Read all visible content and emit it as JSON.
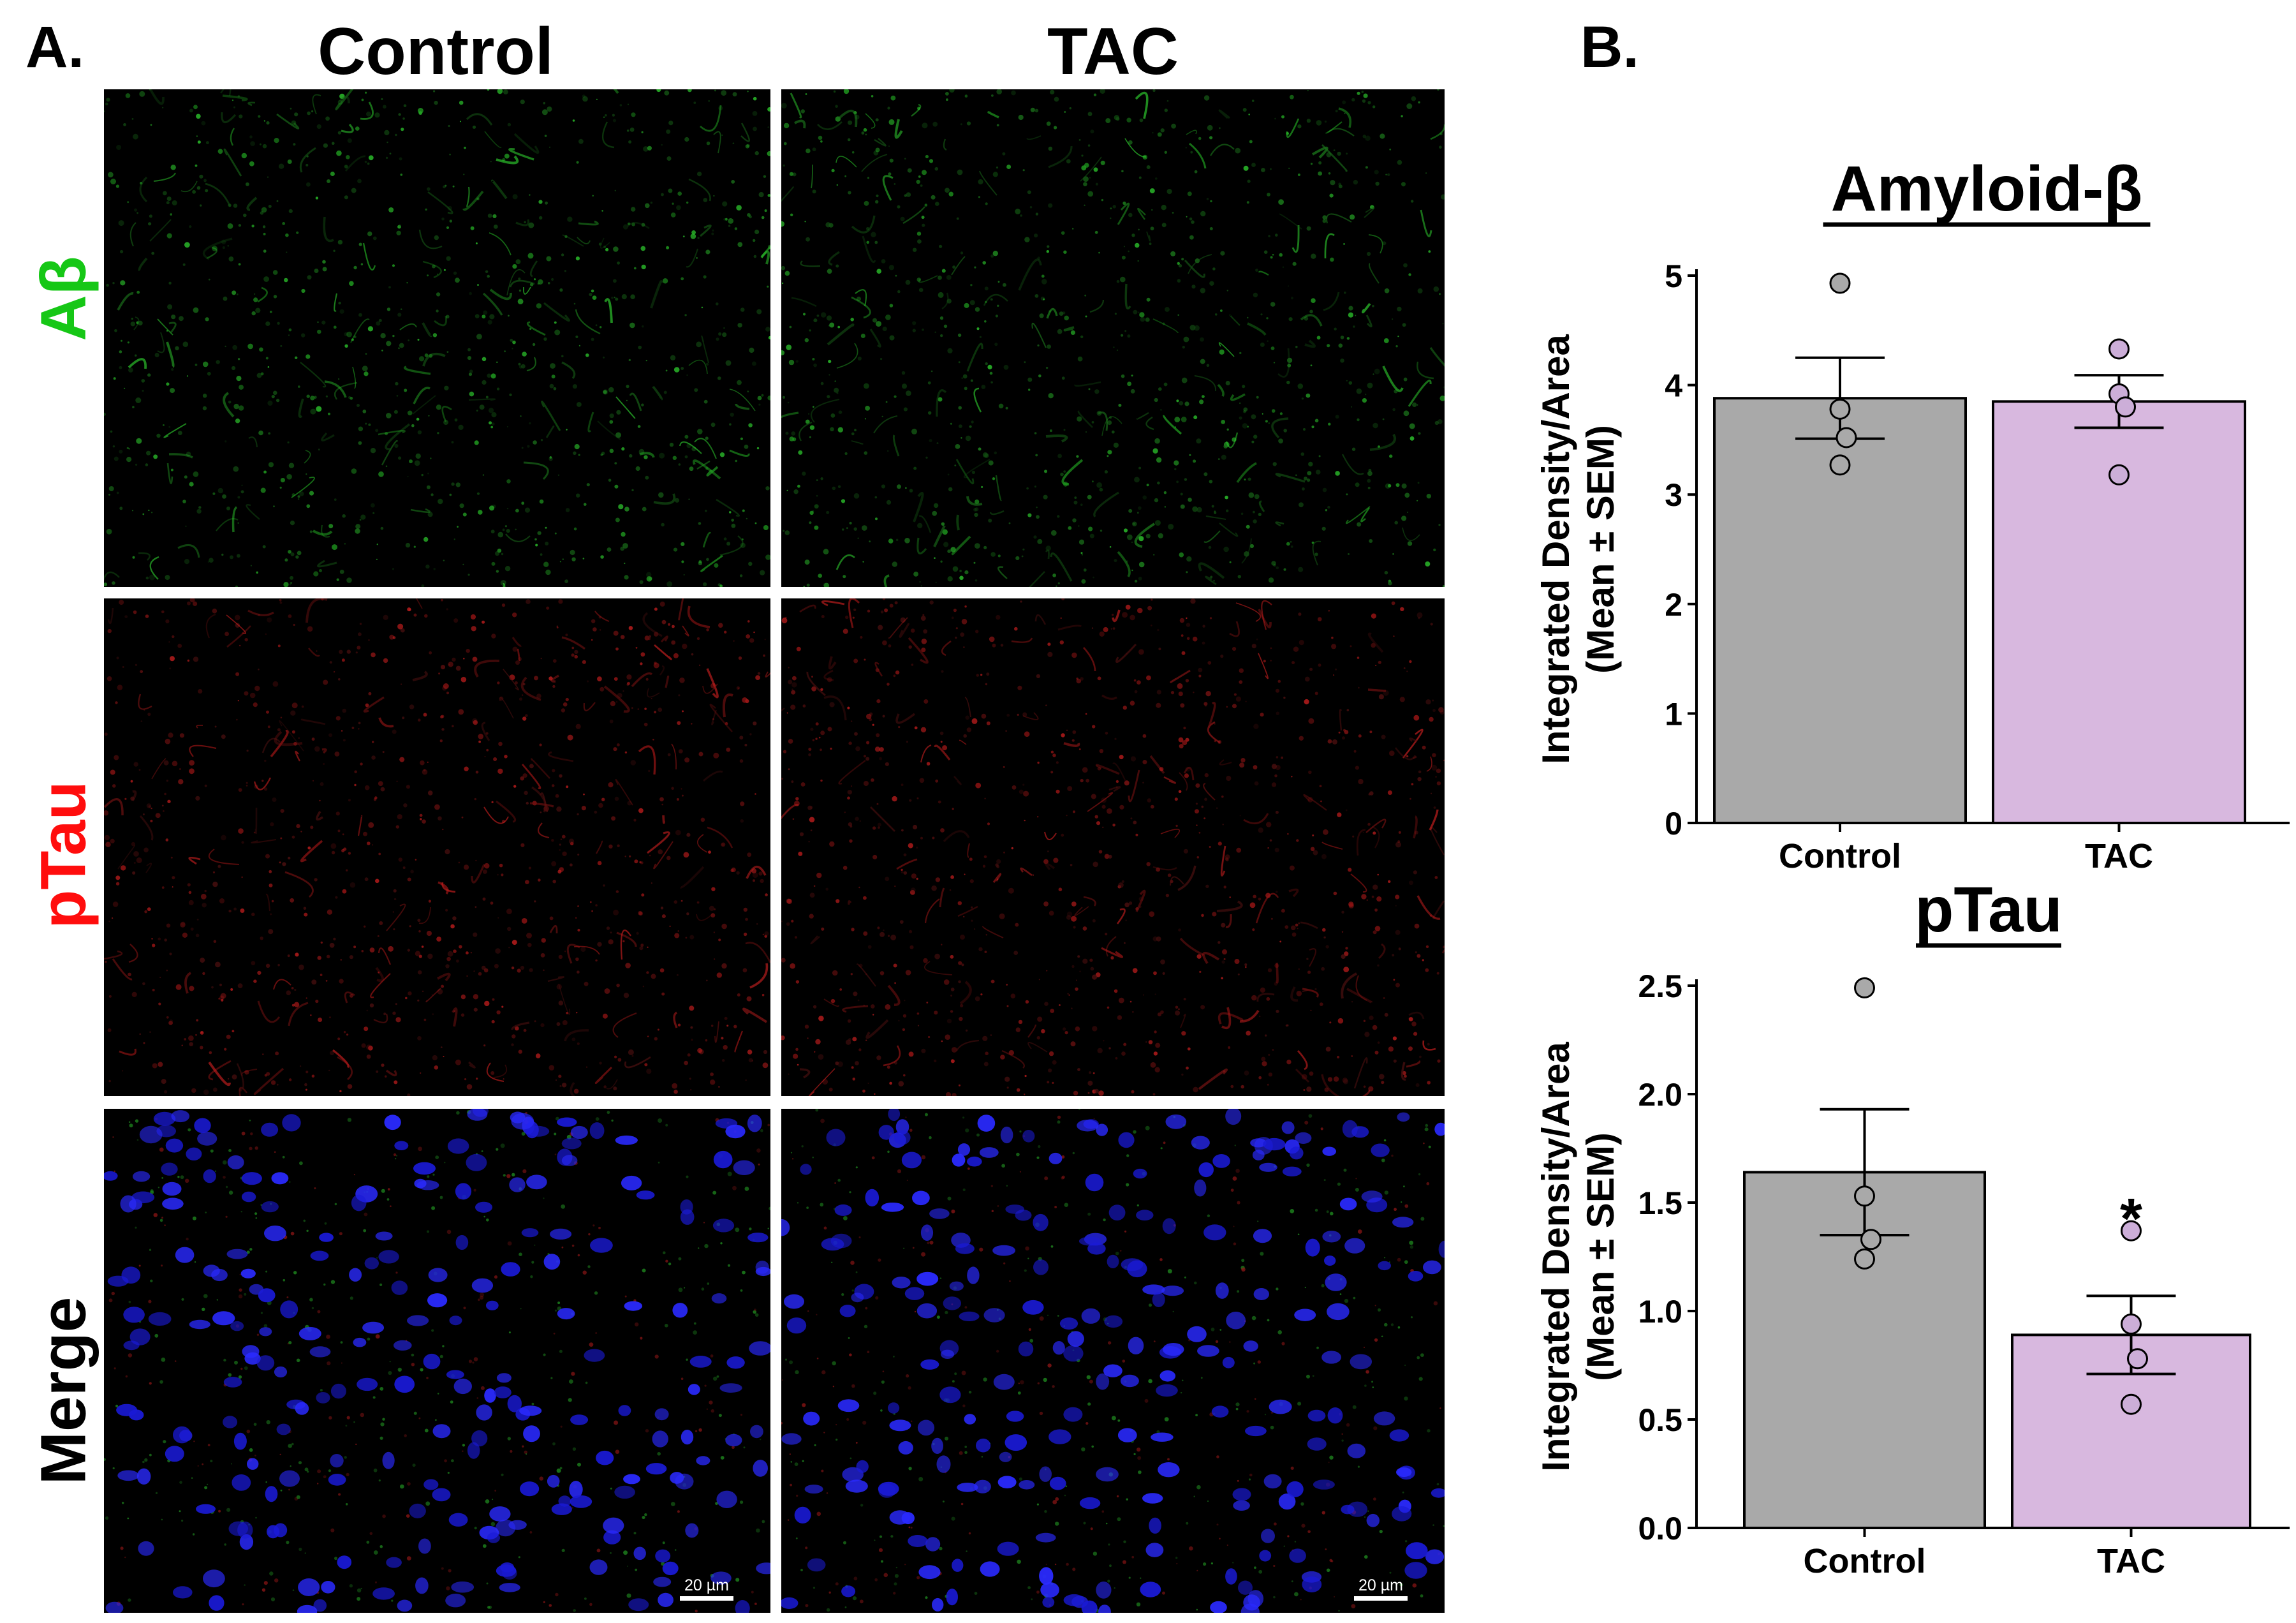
{
  "panel_a": {
    "letter": "A.",
    "columns": [
      "Control",
      "TAC"
    ],
    "rows": [
      {
        "label": "Aβ",
        "color": "#16c716"
      },
      {
        "label": "pTau",
        "color": "#ff0d0d"
      },
      {
        "label": "Merge",
        "color": "#000000"
      }
    ],
    "scale_bar": "20 µm"
  },
  "panel_b": {
    "letter": "B."
  },
  "chart_data": [
    {
      "type": "bar",
      "title": "Amyloid-β",
      "categories": [
        "Control",
        "TAC"
      ],
      "values": [
        3.88,
        3.85
      ],
      "sem": [
        0.37,
        0.24
      ],
      "points": [
        [
          4.93,
          3.78,
          3.52,
          3.27
        ],
        [
          4.33,
          3.92,
          3.8,
          3.18
        ]
      ],
      "ylabel": [
        "Integrated Density/Area",
        "(Mean ± SEM)"
      ],
      "ylim": [
        0,
        5
      ],
      "yticks": [
        "0",
        "1",
        "2",
        "3",
        "4",
        "5"
      ],
      "colors": [
        "#a9a9a9",
        "#d8b8df"
      ],
      "point_colors": [
        "#a9a9a9",
        "#ccaed8"
      ],
      "significance": [
        "",
        ""
      ]
    },
    {
      "type": "bar",
      "title": "pTau",
      "categories": [
        "Control",
        "TAC"
      ],
      "values": [
        1.64,
        0.89
      ],
      "sem": [
        0.29,
        0.18
      ],
      "points": [
        [
          2.49,
          1.53,
          1.33,
          1.24
        ],
        [
          1.37,
          0.94,
          0.78,
          0.57
        ]
      ],
      "ylabel": [
        "Integrated Density/Area",
        "(Mean ± SEM)"
      ],
      "ylim": [
        0,
        2.5
      ],
      "yticks": [
        "0.0",
        "0.5",
        "1.0",
        "1.5",
        "2.0",
        "2.5"
      ],
      "colors": [
        "#a9a9a9",
        "#d8b8df"
      ],
      "point_colors": [
        "#a9a9a9",
        "#ccaed8"
      ],
      "significance": [
        "",
        "*"
      ]
    }
  ]
}
